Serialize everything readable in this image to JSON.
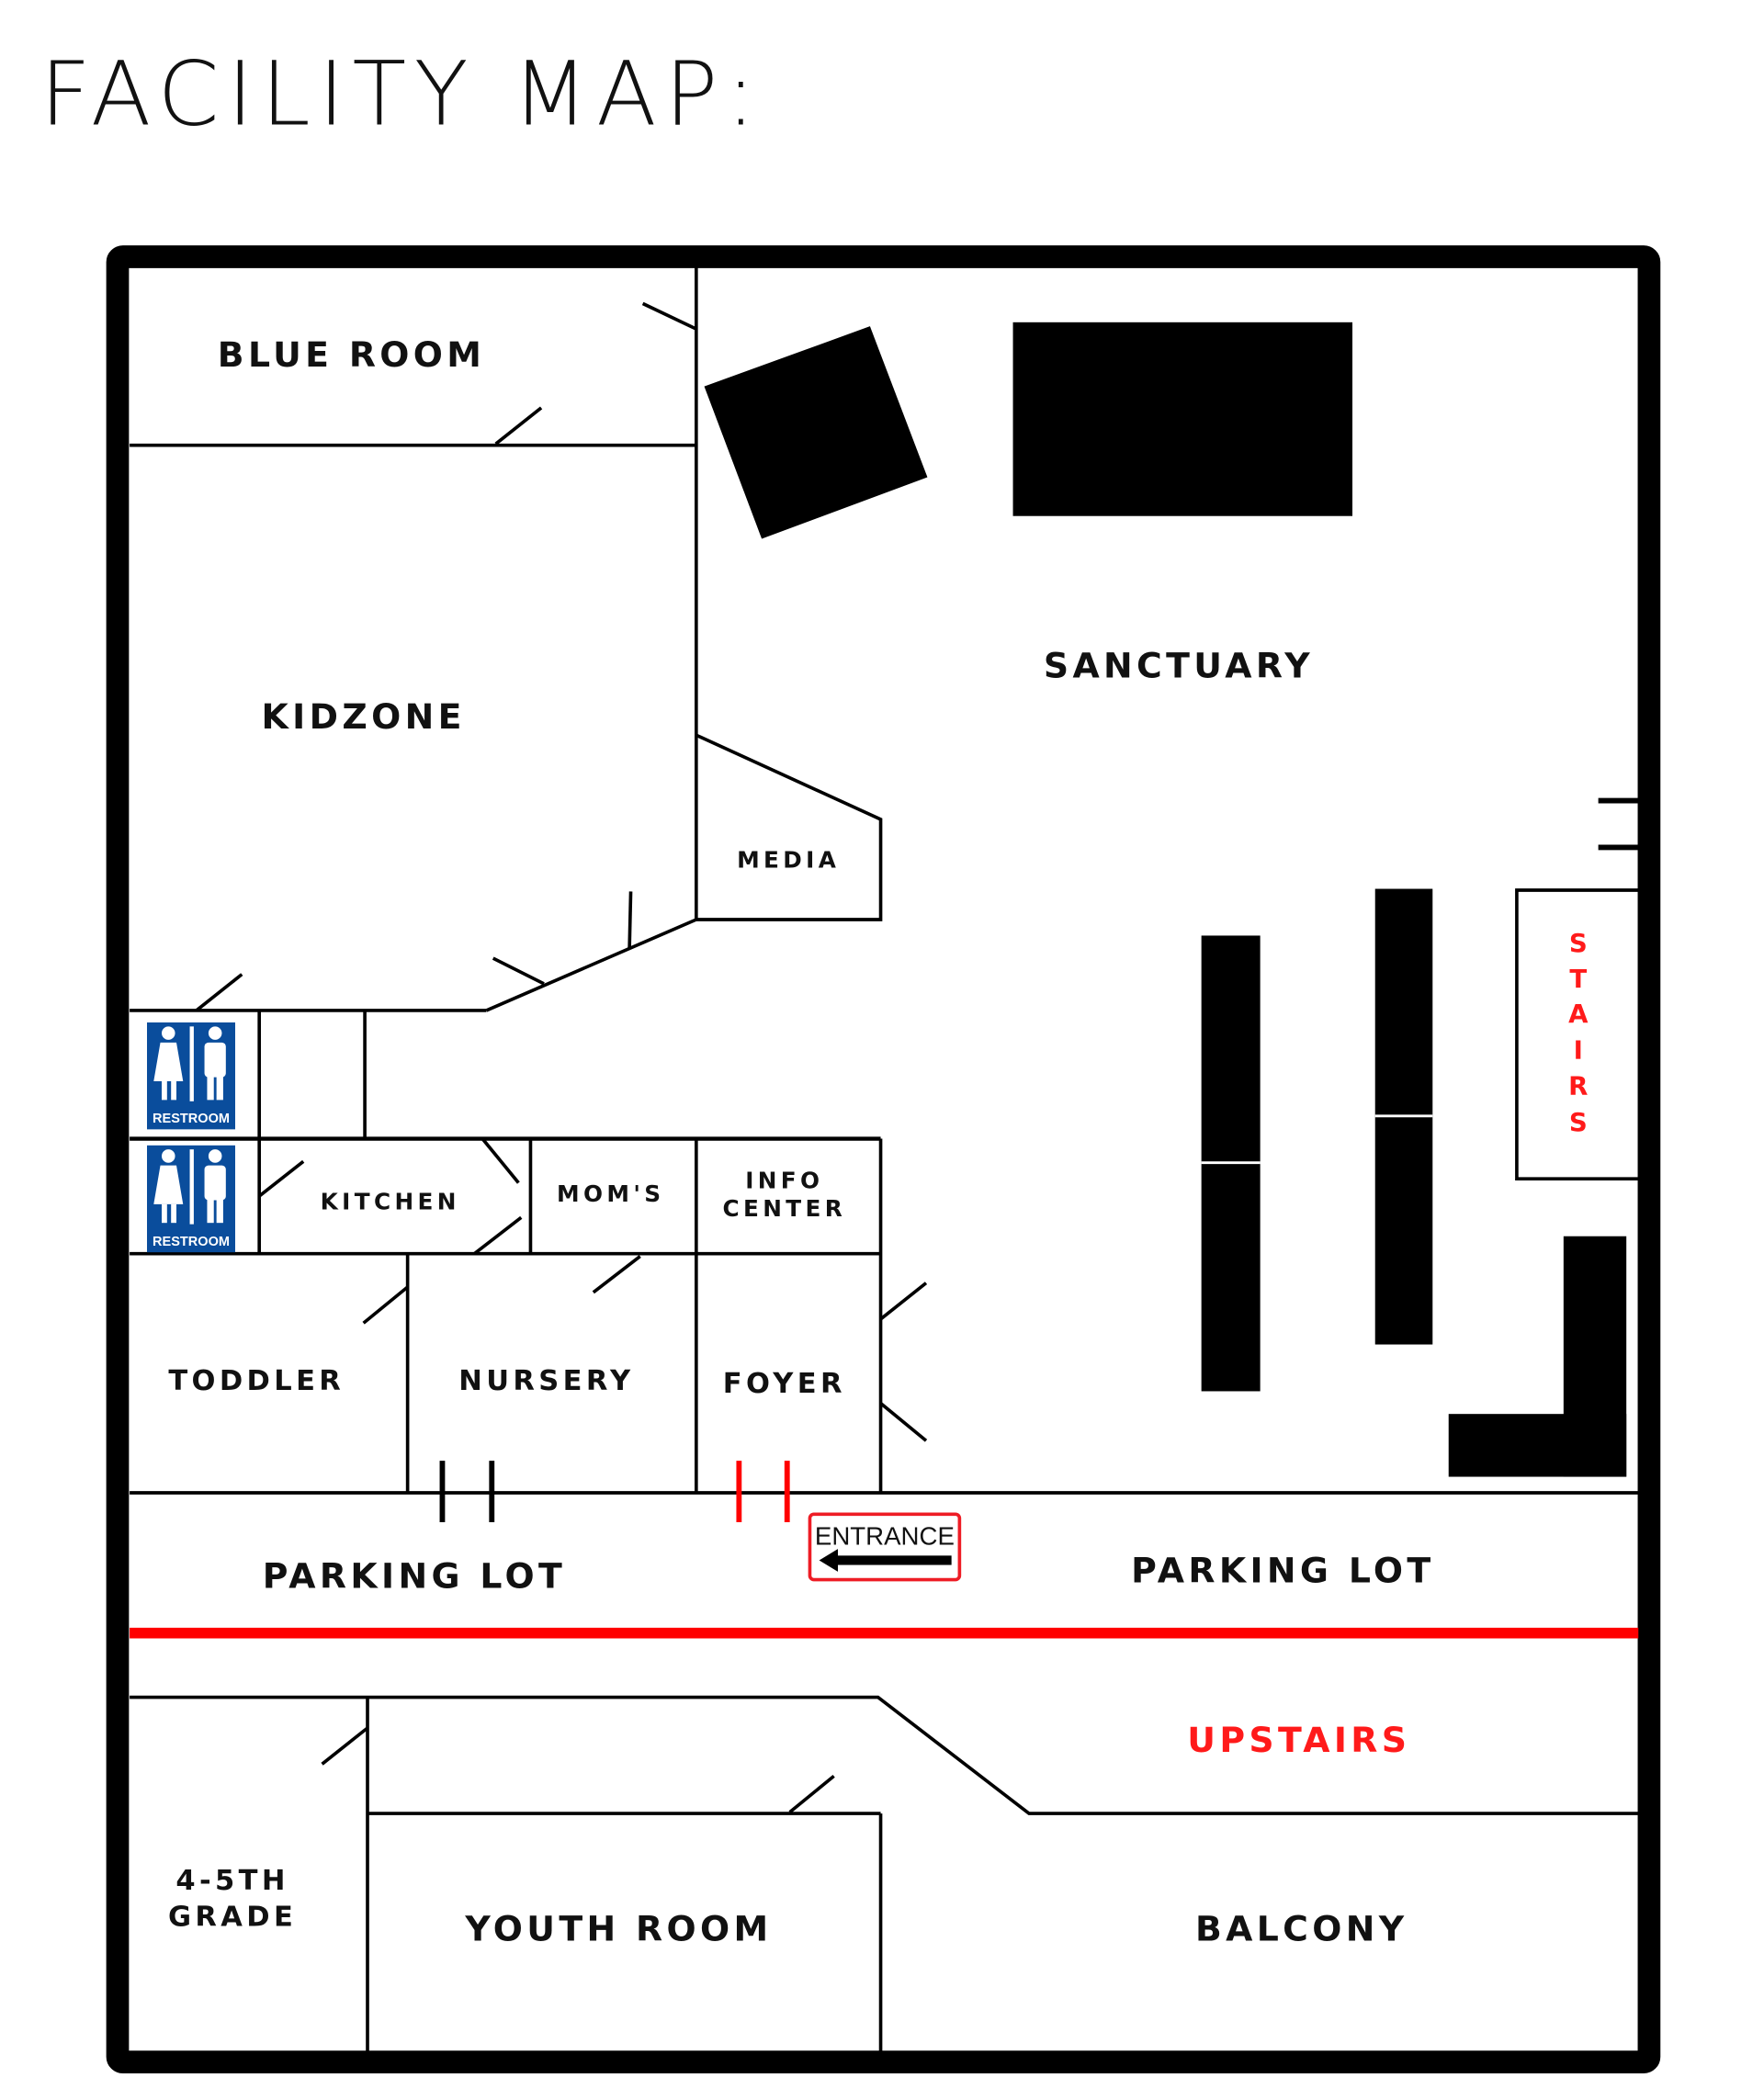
{
  "title": "FACILITY MAP:",
  "colors": {
    "wall": "#000000",
    "accent_red": "#ff0000",
    "restroom_blue": "#0a4d9c"
  },
  "rooms": {
    "blue_room": "BLUE ROOM",
    "kidzone": "KIDZONE",
    "sanctuary": "SANCTUARY",
    "media": "MEDIA",
    "kitchen": "KITCHEN",
    "moms": "MOM'S",
    "info_center_1": "INFO",
    "info_center_2": "CENTER",
    "toddler": "TODDLER",
    "nursery": "NURSERY",
    "foyer": "FOYER",
    "parking_lot_left": "PARKING LOT",
    "parking_lot_right": "PARKING LOT",
    "upstairs": "UPSTAIRS",
    "grade_1": "4-5TH",
    "grade_2": "GRADE",
    "youth_room": "YOUTH ROOM",
    "balcony": "BALCONY",
    "stairs": [
      "S",
      "T",
      "A",
      "I",
      "R",
      "S"
    ]
  },
  "restroom_label": "RESTROOM",
  "entrance_sign": {
    "label": "ENTRANCE",
    "icon": "arrow-left-icon"
  }
}
